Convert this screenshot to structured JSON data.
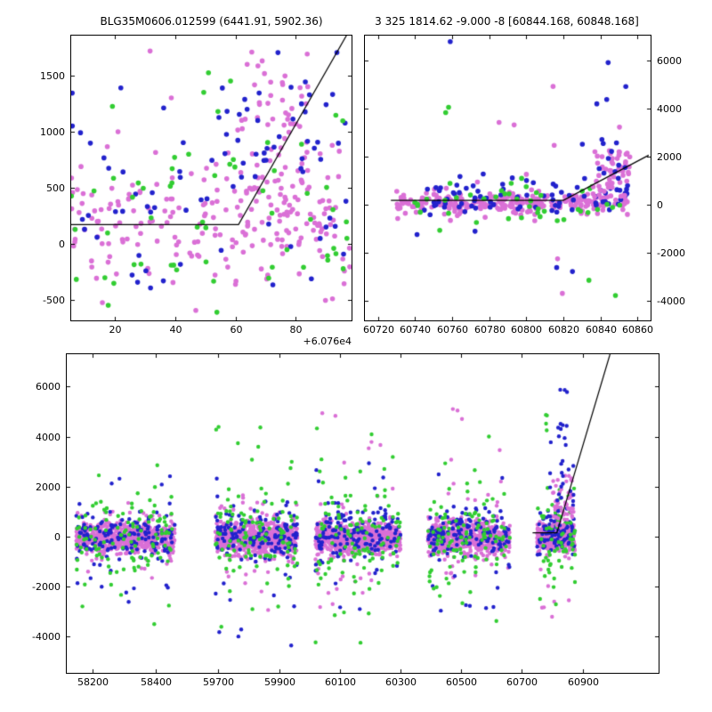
{
  "series_colors": {
    "violet": "#DA70D6",
    "green": "#32CD32",
    "blue": "#2222CC"
  },
  "line_color": "#000000",
  "chart_data": [
    {
      "id": "zoom-event",
      "type": "scatter",
      "title": "BLG35M0606.012599 (6441.91, 5902.36)",
      "x_offset_label": "+6.076e4",
      "x_offset": 60760,
      "xlim": [
        5.5,
        98.5
      ],
      "ylim": [
        -680,
        1860
      ],
      "xticks": [
        20,
        40,
        60,
        80
      ],
      "yticks": [
        -500,
        0,
        500,
        1000,
        1500
      ],
      "ytick_side": "left",
      "marker_radius": 2.8,
      "line": [
        [
          5.5,
          175
        ],
        [
          61,
          175
        ],
        [
          97,
          1870
        ]
      ],
      "clusters": [
        {
          "series": "violet",
          "n": 200,
          "x": [
            5.5,
            98
          ],
          "y": {
            "dist": "gauss",
            "mean": 220,
            "sd": 300
          }
        },
        {
          "series": "violet",
          "n": 25,
          "x": [
            5.5,
            98
          ],
          "y": {
            "dist": "gauss",
            "mean": 0,
            "sd": 700
          }
        },
        {
          "series": "violet",
          "n": 55,
          "x": [
            62,
            84
          ],
          "y": {
            "dist": "uniform",
            "min": 250,
            "max": 1800
          }
        },
        {
          "series": "blue",
          "n": 70,
          "x": [
            5.5,
            98
          ],
          "y": {
            "dist": "gauss",
            "mean": 420,
            "sd": 480
          }
        },
        {
          "series": "blue",
          "n": 16,
          "x": [
            55,
            95
          ],
          "y": {
            "dist": "uniform",
            "min": 900,
            "max": 1750
          }
        },
        {
          "series": "green",
          "n": 48,
          "x": [
            5.5,
            98
          ],
          "y": {
            "dist": "gauss",
            "mean": 230,
            "sd": 460
          }
        },
        {
          "series": "green",
          "n": 12,
          "x": [
            5.5,
            98
          ],
          "y": {
            "dist": "uniform",
            "min": -620,
            "max": 1700
          }
        }
      ]
    },
    {
      "id": "event-window",
      "type": "scatter",
      "title": "3 325 1814.62 -9.000 -8 [60844.168, 60848.168]",
      "xlim": [
        60713,
        60867
      ],
      "ylim": [
        -4814,
        7036
      ],
      "xticks": [
        60720,
        60740,
        60760,
        60780,
        60800,
        60820,
        60840,
        60860
      ],
      "yticks": [
        -4000,
        -2000,
        0,
        2000,
        4000,
        6000
      ],
      "ytick_side": "right",
      "marker_radius": 2.8,
      "line": [
        [
          60727,
          180
        ],
        [
          60820,
          180
        ],
        [
          60866,
          2060
        ]
      ],
      "clusters": [
        {
          "series": "violet",
          "n": 270,
          "x": [
            60730,
            60855
          ],
          "y": {
            "dist": "gauss",
            "mean": 80,
            "sd": 230
          }
        },
        {
          "series": "blue",
          "n": 80,
          "x": [
            60745,
            60855
          ],
          "y": {
            "dist": "gauss",
            "mean": 250,
            "sd": 420
          }
        },
        {
          "series": "green",
          "n": 40,
          "x": [
            60738,
            60853
          ],
          "y": {
            "dist": "gauss",
            "mean": 50,
            "sd": 500
          }
        },
        {
          "series": "violet",
          "n": 10,
          "x": [
            60725,
            60855
          ],
          "y": {
            "dist": "uniform",
            "min": -4400,
            "max": 5300
          }
        },
        {
          "series": "blue",
          "n": 8,
          "x": [
            60740,
            60855
          ],
          "y": {
            "dist": "uniform",
            "min": -3800,
            "max": 6900
          }
        },
        {
          "series": "green",
          "n": 7,
          "x": [
            60725,
            60850
          ],
          "y": {
            "dist": "uniform",
            "min": -4700,
            "max": 5000
          }
        },
        {
          "series": "violet",
          "n": 55,
          "x": [
            60836,
            60856
          ],
          "y": {
            "dist": "uniform",
            "min": 250,
            "max": 2300
          }
        },
        {
          "series": "blue",
          "n": 14,
          "x": [
            60830,
            60854
          ],
          "y": {
            "dist": "uniform",
            "min": 800,
            "max": 4500
          }
        }
      ]
    },
    {
      "id": "full-lightcurve",
      "type": "scatter",
      "title": "",
      "x_segments": [
        {
          "xlim": [
            58120,
            58515
          ],
          "span": [
            0,
            0.212
          ]
        },
        {
          "xlim": [
            59614,
            61150
          ],
          "span": [
            0.212,
            1.0
          ]
        }
      ],
      "ylim": [
        -5460,
        7300
      ],
      "xticks": [
        58200,
        58400,
        59700,
        59900,
        60100,
        60300,
        60500,
        60700,
        60900
      ],
      "yticks": [
        -4000,
        -2000,
        0,
        2000,
        4000,
        6000
      ],
      "ytick_side": "left",
      "marker_radius": 2.2,
      "line": [
        [
          60735,
          150
        ],
        [
          60815,
          150
        ],
        [
          60990,
          7300
        ]
      ],
      "clusters": [
        {
          "series": "violet",
          "n": 620,
          "x": [
            58150,
            58460
          ],
          "y": {
            "dist": "gauss",
            "mean": -80,
            "sd": 300
          }
        },
        {
          "series": "violet",
          "n": 45,
          "x": [
            58150,
            58460
          ],
          "y": {
            "dist": "gauss",
            "mean": 0,
            "sd": 1000
          }
        },
        {
          "series": "blue",
          "n": 140,
          "x": [
            58150,
            58460
          ],
          "y": {
            "dist": "gauss",
            "mean": 60,
            "sd": 480
          }
        },
        {
          "series": "blue",
          "n": 22,
          "x": [
            58150,
            58460
          ],
          "y": {
            "dist": "uniform",
            "min": -2700,
            "max": 2700
          }
        },
        {
          "series": "green",
          "n": 95,
          "x": [
            58150,
            58460
          ],
          "y": {
            "dist": "gauss",
            "mean": 0,
            "sd": 800
          }
        },
        {
          "series": "green",
          "n": 18,
          "x": [
            58150,
            58460
          ],
          "y": {
            "dist": "uniform",
            "min": -3600,
            "max": 3600
          }
        },
        {
          "series": "violet",
          "n": 620,
          "x": [
            59690,
            59960
          ],
          "y": {
            "dist": "gauss",
            "mean": -80,
            "sd": 310
          }
        },
        {
          "series": "violet",
          "n": 50,
          "x": [
            59690,
            59960
          ],
          "y": {
            "dist": "gauss",
            "mean": 0,
            "sd": 1200
          }
        },
        {
          "series": "blue",
          "n": 140,
          "x": [
            59690,
            59960
          ],
          "y": {
            "dist": "gauss",
            "mean": 60,
            "sd": 520
          }
        },
        {
          "series": "blue",
          "n": 22,
          "x": [
            59690,
            59960
          ],
          "y": {
            "dist": "uniform",
            "min": -4400,
            "max": 3000
          }
        },
        {
          "series": "green",
          "n": 95,
          "x": [
            59690,
            59960
          ],
          "y": {
            "dist": "gauss",
            "mean": 0,
            "sd": 900
          }
        },
        {
          "series": "green",
          "n": 20,
          "x": [
            59690,
            59960
          ],
          "y": {
            "dist": "uniform",
            "min": -4600,
            "max": 4500
          }
        },
        {
          "series": "violet",
          "n": 620,
          "x": [
            60020,
            60300
          ],
          "y": {
            "dist": "gauss",
            "mean": -80,
            "sd": 310
          }
        },
        {
          "series": "violet",
          "n": 50,
          "x": [
            60020,
            60300
          ],
          "y": {
            "dist": "gauss",
            "mean": 0,
            "sd": 1200
          }
        },
        {
          "series": "violet",
          "n": 6,
          "x": [
            60040,
            60280
          ],
          "y": {
            "dist": "uniform",
            "min": 2600,
            "max": 5100
          }
        },
        {
          "series": "blue",
          "n": 140,
          "x": [
            60020,
            60300
          ],
          "y": {
            "dist": "gauss",
            "mean": 60,
            "sd": 520
          }
        },
        {
          "series": "blue",
          "n": 20,
          "x": [
            60020,
            60300
          ],
          "y": {
            "dist": "uniform",
            "min": -3500,
            "max": 3200
          }
        },
        {
          "series": "green",
          "n": 95,
          "x": [
            60020,
            60300
          ],
          "y": {
            "dist": "gauss",
            "mean": 0,
            "sd": 950
          }
        },
        {
          "series": "green",
          "n": 20,
          "x": [
            60020,
            60300
          ],
          "y": {
            "dist": "uniform",
            "min": -4400,
            "max": 5000
          }
        },
        {
          "series": "violet",
          "n": 620,
          "x": [
            60390,
            60660
          ],
          "y": {
            "dist": "gauss",
            "mean": -80,
            "sd": 300
          }
        },
        {
          "series": "violet",
          "n": 45,
          "x": [
            60390,
            60660
          ],
          "y": {
            "dist": "gauss",
            "mean": 0,
            "sd": 1100
          }
        },
        {
          "series": "violet",
          "n": 5,
          "x": [
            60400,
            60640
          ],
          "y": {
            "dist": "uniform",
            "min": 2500,
            "max": 5300
          }
        },
        {
          "series": "blue",
          "n": 140,
          "x": [
            60390,
            60660
          ],
          "y": {
            "dist": "gauss",
            "mean": 80,
            "sd": 520
          }
        },
        {
          "series": "blue",
          "n": 18,
          "x": [
            60390,
            60660
          ],
          "y": {
            "dist": "uniform",
            "min": -3300,
            "max": 2900
          }
        },
        {
          "series": "green",
          "n": 95,
          "x": [
            60390,
            60660
          ],
          "y": {
            "dist": "gauss",
            "mean": 0,
            "sd": 900
          }
        },
        {
          "series": "green",
          "n": 16,
          "x": [
            60390,
            60660
          ],
          "y": {
            "dist": "uniform",
            "min": -3800,
            "max": 4600
          }
        },
        {
          "series": "violet",
          "n": 400,
          "x": [
            60750,
            60875
          ],
          "y": {
            "dist": "gauss",
            "mean": -60,
            "sd": 280
          }
        },
        {
          "series": "violet",
          "n": 8,
          "x": [
            60750,
            60870
          ],
          "y": {
            "dist": "uniform",
            "min": -3400,
            "max": -800
          }
        },
        {
          "series": "blue",
          "n": 95,
          "x": [
            60750,
            60875
          ],
          "y": {
            "dist": "gauss",
            "mean": 80,
            "sd": 480
          }
        },
        {
          "series": "green",
          "n": 60,
          "x": [
            60750,
            60875
          ],
          "y": {
            "dist": "gauss",
            "mean": 0,
            "sd": 850
          }
        },
        {
          "series": "green",
          "n": 10,
          "x": [
            60750,
            60865
          ],
          "y": {
            "dist": "uniform",
            "min": -3000,
            "max": 2500
          }
        },
        {
          "series": "violet",
          "n": 60,
          "x": [
            60795,
            60870
          ],
          "y": {
            "dist": "uniform",
            "min": 250,
            "max": 2500
          }
        },
        {
          "series": "blue",
          "n": 30,
          "x": [
            60790,
            60870
          ],
          "y": {
            "dist": "uniform",
            "min": 400,
            "max": 4600
          }
        },
        {
          "series": "blue",
          "n": 3,
          "x": [
            60815,
            60850
          ],
          "y": {
            "dist": "uniform",
            "min": 5600,
            "max": 6100
          }
        },
        {
          "series": "green",
          "n": 4,
          "x": [
            60765,
            60805
          ],
          "y": {
            "dist": "uniform",
            "min": 4200,
            "max": 5200
          }
        }
      ]
    }
  ]
}
